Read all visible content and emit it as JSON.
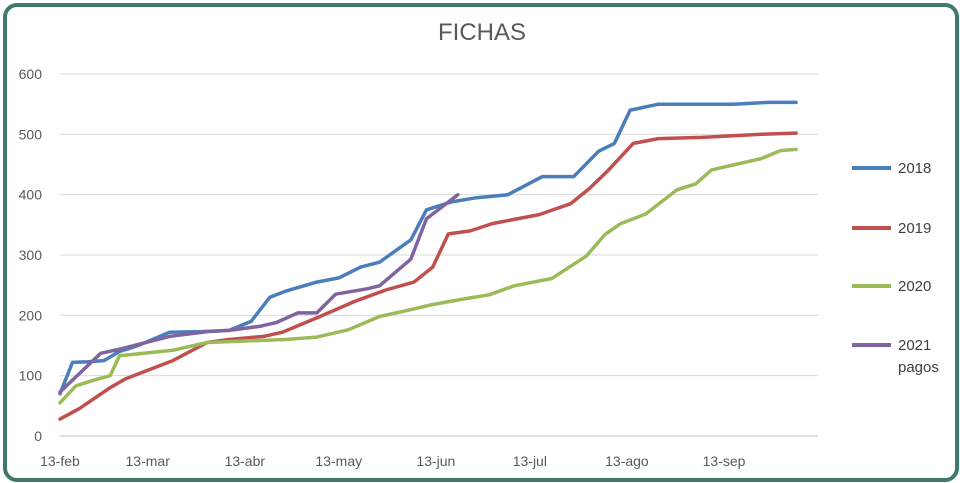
{
  "chart_data": {
    "type": "line",
    "title": "FICHAS",
    "xlabel": "",
    "ylabel": "",
    "ylim": [
      0,
      600
    ],
    "yticks": [
      0,
      100,
      200,
      300,
      400,
      500,
      600
    ],
    "xlim": [
      "2021-02-13",
      "2021-10-13"
    ],
    "xticks": [
      {
        "date": "2021-02-13",
        "label": "13-feb"
      },
      {
        "date": "2021-03-13",
        "label": "13-mar"
      },
      {
        "date": "2021-04-13",
        "label": "13-abr"
      },
      {
        "date": "2021-05-13",
        "label": "13-may"
      },
      {
        "date": "2021-06-13",
        "label": "13-jun"
      },
      {
        "date": "2021-07-13",
        "label": "13-jul"
      },
      {
        "date": "2021-08-13",
        "label": "13-ago"
      },
      {
        "date": "2021-09-13",
        "label": "13-sep"
      }
    ],
    "grid": true,
    "legend": "right",
    "series": [
      {
        "name": "2018",
        "color": "#4a7ebb",
        "points": [
          [
            "2021-02-13",
            70
          ],
          [
            "2021-02-17",
            122
          ],
          [
            "2021-02-22",
            123
          ],
          [
            "2021-02-27",
            125
          ],
          [
            "2021-03-04",
            140
          ],
          [
            "2021-03-10",
            150
          ],
          [
            "2021-03-20",
            172
          ],
          [
            "2021-03-30",
            173
          ],
          [
            "2021-04-08",
            175
          ],
          [
            "2021-04-15",
            190
          ],
          [
            "2021-04-21",
            230
          ],
          [
            "2021-04-26",
            240
          ],
          [
            "2021-05-06",
            255
          ],
          [
            "2021-05-13",
            262
          ],
          [
            "2021-05-20",
            280
          ],
          [
            "2021-05-26",
            288
          ],
          [
            "2021-06-05",
            325
          ],
          [
            "2021-06-10",
            375
          ],
          [
            "2021-06-18",
            388
          ],
          [
            "2021-06-26",
            395
          ],
          [
            "2021-07-06",
            400
          ],
          [
            "2021-07-17",
            430
          ],
          [
            "2021-07-27",
            430
          ],
          [
            "2021-08-04",
            472
          ],
          [
            "2021-08-09",
            485
          ],
          [
            "2021-08-14",
            540
          ],
          [
            "2021-08-23",
            550
          ],
          [
            "2021-09-05",
            550
          ],
          [
            "2021-09-16",
            550
          ],
          [
            "2021-09-27",
            553
          ],
          [
            "2021-10-06",
            553
          ]
        ]
      },
      {
        "name": "2019",
        "color": "#c0504d",
        "points": [
          [
            "2021-02-13",
            28
          ],
          [
            "2021-02-19",
            45
          ],
          [
            "2021-03-01",
            80
          ],
          [
            "2021-03-06",
            95
          ],
          [
            "2021-03-21",
            125
          ],
          [
            "2021-04-01",
            155
          ],
          [
            "2021-04-08",
            160
          ],
          [
            "2021-04-19",
            165
          ],
          [
            "2021-04-25",
            172
          ],
          [
            "2021-05-07",
            198
          ],
          [
            "2021-05-18",
            223
          ],
          [
            "2021-05-28",
            242
          ],
          [
            "2021-06-06",
            255
          ],
          [
            "2021-06-12",
            280
          ],
          [
            "2021-06-17",
            335
          ],
          [
            "2021-06-24",
            340
          ],
          [
            "2021-07-01",
            352
          ],
          [
            "2021-07-16",
            367
          ],
          [
            "2021-07-26",
            385
          ],
          [
            "2021-08-01",
            410
          ],
          [
            "2021-08-07",
            440
          ],
          [
            "2021-08-15",
            485
          ],
          [
            "2021-08-23",
            493
          ],
          [
            "2021-09-06",
            495
          ],
          [
            "2021-09-25",
            500
          ],
          [
            "2021-10-06",
            502
          ]
        ]
      },
      {
        "name": "2020",
        "color": "#9bbb59",
        "points": [
          [
            "2021-02-13",
            55
          ],
          [
            "2021-02-18",
            83
          ],
          [
            "2021-02-24",
            93
          ],
          [
            "2021-03-01",
            100
          ],
          [
            "2021-03-04",
            133
          ],
          [
            "2021-03-21",
            142
          ],
          [
            "2021-04-01",
            155
          ],
          [
            "2021-04-26",
            160
          ],
          [
            "2021-05-06",
            164
          ],
          [
            "2021-05-16",
            176
          ],
          [
            "2021-05-26",
            198
          ],
          [
            "2021-06-03",
            207
          ],
          [
            "2021-06-12",
            218
          ],
          [
            "2021-06-23",
            228
          ],
          [
            "2021-06-30",
            234
          ],
          [
            "2021-07-08",
            249
          ],
          [
            "2021-07-20",
            261
          ],
          [
            "2021-07-31",
            298
          ],
          [
            "2021-08-06",
            334
          ],
          [
            "2021-08-11",
            352
          ],
          [
            "2021-08-19",
            368
          ],
          [
            "2021-08-29",
            408
          ],
          [
            "2021-09-04",
            418
          ],
          [
            "2021-09-09",
            441
          ],
          [
            "2021-09-25",
            460
          ],
          [
            "2021-10-01",
            473
          ],
          [
            "2021-10-06",
            475
          ]
        ]
      },
      {
        "name": "2021 pagos",
        "color": "#8064a2",
        "points": [
          [
            "2021-02-13",
            73
          ],
          [
            "2021-02-26",
            137
          ],
          [
            "2021-03-05",
            145
          ],
          [
            "2021-03-20",
            165
          ],
          [
            "2021-04-01",
            173
          ],
          [
            "2021-04-08",
            175
          ],
          [
            "2021-04-18",
            182
          ],
          [
            "2021-04-23",
            188
          ],
          [
            "2021-04-30",
            204
          ],
          [
            "2021-05-06",
            204
          ],
          [
            "2021-05-12",
            235
          ],
          [
            "2021-05-22",
            244
          ],
          [
            "2021-05-26",
            249
          ],
          [
            "2021-06-05",
            293
          ],
          [
            "2021-06-10",
            360
          ],
          [
            "2021-06-20",
            400
          ]
        ]
      }
    ]
  }
}
